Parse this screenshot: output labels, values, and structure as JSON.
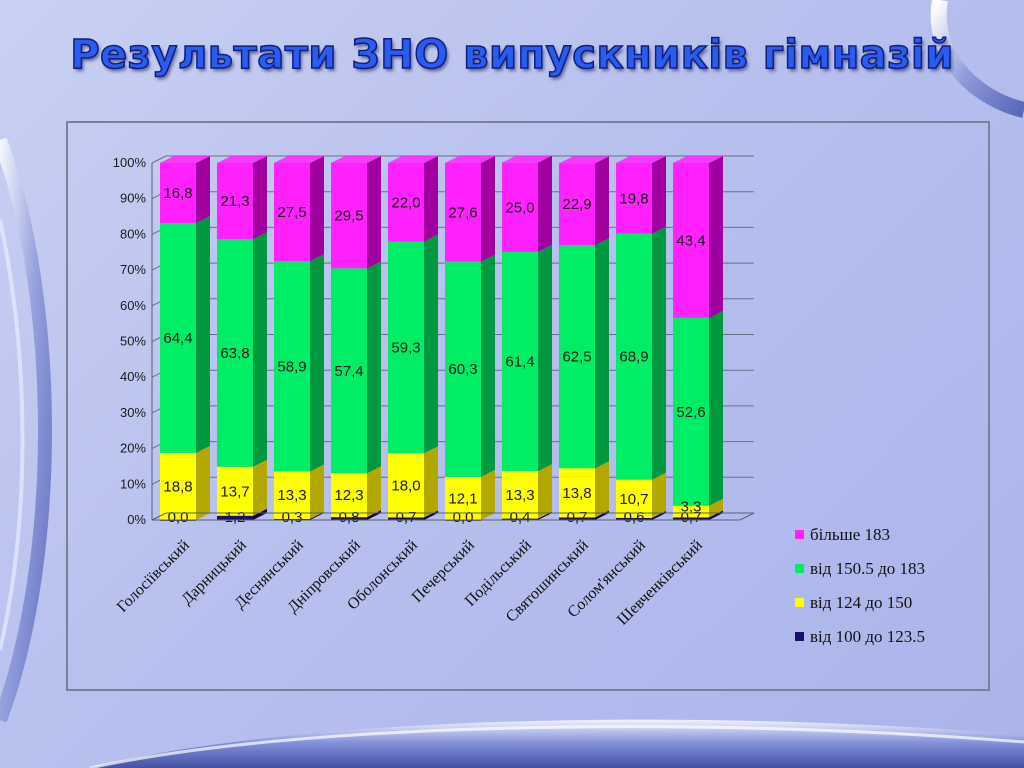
{
  "title": "Результати ЗНО випускників гімназій",
  "chart_data": {
    "type": "bar",
    "stacked": true,
    "percent_stacked": true,
    "title": "",
    "xlabel": "",
    "ylabel": "",
    "ylim": [
      0,
      100
    ],
    "y_ticks": [
      "0%",
      "10%",
      "20%",
      "30%",
      "40%",
      "50%",
      "60%",
      "70%",
      "80%",
      "90%",
      "100%"
    ],
    "grid": true,
    "legend_position": "right",
    "categories": [
      "Голосіївський",
      "Дарницький",
      "Деснянський",
      "Дніпровський",
      "Оболонський",
      "Печерський",
      "Подільський",
      "Святошинський",
      "Солом'янський",
      "Шевченківський"
    ],
    "series": [
      {
        "name": "від 100 до 123.5",
        "color": "#1a0f6b",
        "side_color": "#0c0640",
        "values": [
          0.0,
          1.2,
          0.3,
          0.8,
          0.7,
          0.0,
          0.4,
          0.7,
          0.6,
          0.7
        ],
        "labels": [
          "0,0",
          "1,2",
          "0,3",
          "0,8",
          "0,7",
          "0,0",
          "0,4",
          "0,7",
          "0,6",
          "0,7"
        ]
      },
      {
        "name": "від 124 до 150",
        "color": "#ffff00",
        "side_color": "#b3a800",
        "values": [
          18.8,
          13.7,
          13.3,
          12.3,
          18.0,
          12.1,
          13.3,
          13.8,
          10.7,
          3.3
        ],
        "labels": [
          "18,8",
          "13,7",
          "13,3",
          "12,3",
          "18,0",
          "12,1",
          "13,3",
          "13,8",
          "10,7",
          "3,3"
        ]
      },
      {
        "name": "від 150.5 до 183",
        "color": "#00ee66",
        "side_color": "#009940",
        "values": [
          64.4,
          63.8,
          58.9,
          57.4,
          59.3,
          60.3,
          61.4,
          62.5,
          68.9,
          52.6
        ],
        "labels": [
          "64,4",
          "63,8",
          "58,9",
          "57,4",
          "59,3",
          "60,3",
          "61,4",
          "62,5",
          "68,9",
          "52,6"
        ]
      },
      {
        "name": "більше 183",
        "color": "#ff22ff",
        "side_color": "#a0009f",
        "values": [
          16.8,
          21.3,
          27.5,
          29.5,
          22.0,
          27.6,
          25.0,
          22.9,
          19.8,
          43.4
        ],
        "labels": [
          "16,8",
          "21,3",
          "27,5",
          "29,5",
          "22,0",
          "27,6",
          "25,0",
          "22,9",
          "19,8",
          "43,4"
        ]
      }
    ],
    "legend_order": [
      "більше 183",
      "від 150.5 до 183",
      "від 124 до 150",
      "від 100 до 123.5"
    ]
  }
}
